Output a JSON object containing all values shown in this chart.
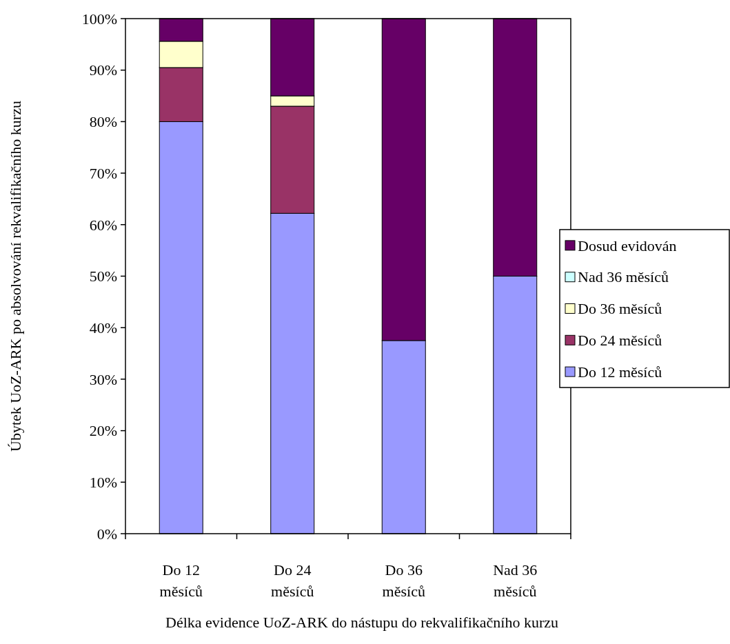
{
  "chart_data": {
    "type": "bar",
    "stacked": true,
    "xlabel": "Délka evidence UoZ-ARK do nástupu do rekvalifikačního kurzu",
    "ylabel": "Úbytek UoZ-ARK po absolvování rekvalifikačního kurzu",
    "categories": [
      "Do 12 měsíců",
      "Do 24 měsíců",
      "Do 36 měsíců",
      "Nad 36 měsíců"
    ],
    "series": [
      {
        "name": "Do 12 měsíců",
        "color": "#9999ff",
        "values": [
          80,
          62.2,
          37.5,
          50
        ]
      },
      {
        "name": "Do 24 měsíců",
        "color": "#993366",
        "values": [
          10.5,
          20.8,
          0,
          0
        ]
      },
      {
        "name": "Do 36 měsíců",
        "color": "#ffffcc",
        "values": [
          5.1,
          2,
          0,
          0
        ]
      },
      {
        "name": "Nad 36 měsíců",
        "color": "#ccffff",
        "values": [
          0,
          0,
          0,
          0
        ]
      },
      {
        "name": "Dosud evidován",
        "color": "#660066",
        "values": [
          4.4,
          15,
          62.5,
          50
        ]
      }
    ],
    "ylim": [
      0,
      100
    ],
    "yticks": [
      {
        "value": 0,
        "label": "0%"
      },
      {
        "value": 10,
        "label": "10%"
      },
      {
        "value": 20,
        "label": "20%"
      },
      {
        "value": 30,
        "label": "30%"
      },
      {
        "value": 40,
        "label": "40%"
      },
      {
        "value": 50,
        "label": "50%"
      },
      {
        "value": 60,
        "label": "60%"
      },
      {
        "value": 70,
        "label": "70%"
      },
      {
        "value": 80,
        "label": "80%"
      },
      {
        "value": 90,
        "label": "90%"
      },
      {
        "value": 100,
        "label": "100%"
      }
    ],
    "grid": false,
    "legend": "right"
  }
}
